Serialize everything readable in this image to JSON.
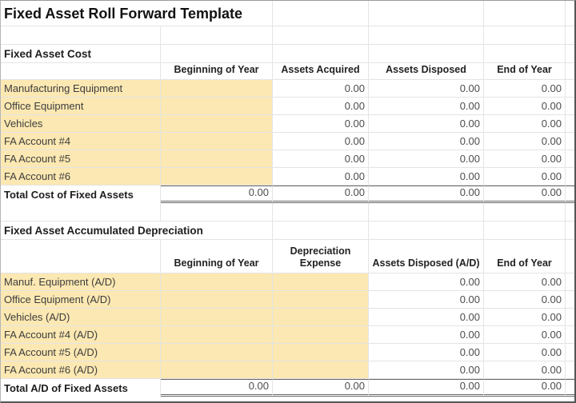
{
  "title": "Fixed Asset Roll Forward Template",
  "colors": {
    "input_cell_bg": "#fce8b2",
    "gridline": "#e4e4e4",
    "total_border": "#686868"
  },
  "sections": [
    {
      "heading": "Fixed Asset Cost",
      "columns": [
        "Beginning of Year",
        "Assets Acquired",
        "Assets Disposed",
        "End of Year"
      ],
      "input_cols": [
        0
      ],
      "rows": [
        {
          "label": "Manufacturing Equipment",
          "values": [
            "",
            "0.00",
            "0.00",
            "0.00"
          ]
        },
        {
          "label": "Office Equipment",
          "values": [
            "",
            "0.00",
            "0.00",
            "0.00"
          ]
        },
        {
          "label": "Vehicles",
          "values": [
            "",
            "0.00",
            "0.00",
            "0.00"
          ]
        },
        {
          "label": "FA Account #4",
          "values": [
            "",
            "0.00",
            "0.00",
            "0.00"
          ]
        },
        {
          "label": "FA Account #5",
          "values": [
            "",
            "0.00",
            "0.00",
            "0.00"
          ]
        },
        {
          "label": "FA Account #6",
          "values": [
            "",
            "0.00",
            "0.00",
            "0.00"
          ]
        }
      ],
      "total": {
        "label": "Total Cost of Fixed Assets",
        "values": [
          "0.00",
          "0.00",
          "0.00",
          "0.00"
        ]
      }
    },
    {
      "heading": "Fixed Asset Accumulated Depreciation",
      "columns": [
        "Beginning of Year",
        "Depreciation Expense",
        "Assets Disposed (A/D)",
        "End of Year"
      ],
      "input_cols": [
        0,
        1
      ],
      "rows": [
        {
          "label": "Manuf. Equipment (A/D)",
          "values": [
            "",
            "",
            "0.00",
            "0.00"
          ]
        },
        {
          "label": "Office Equipment (A/D)",
          "values": [
            "",
            "",
            "0.00",
            "0.00"
          ]
        },
        {
          "label": "Vehicles (A/D)",
          "values": [
            "",
            "",
            "0.00",
            "0.00"
          ]
        },
        {
          "label": "FA Account #4 (A/D)",
          "values": [
            "",
            "",
            "0.00",
            "0.00"
          ]
        },
        {
          "label": "FA Account #5 (A/D)",
          "values": [
            "",
            "",
            "0.00",
            "0.00"
          ]
        },
        {
          "label": "FA Account #6 (A/D)",
          "values": [
            "",
            "",
            "0.00",
            "0.00"
          ]
        }
      ],
      "total": {
        "label": "Total A/D of Fixed Assets",
        "values": [
          "0.00",
          "0.00",
          "0.00",
          "0.00"
        ]
      }
    }
  ]
}
